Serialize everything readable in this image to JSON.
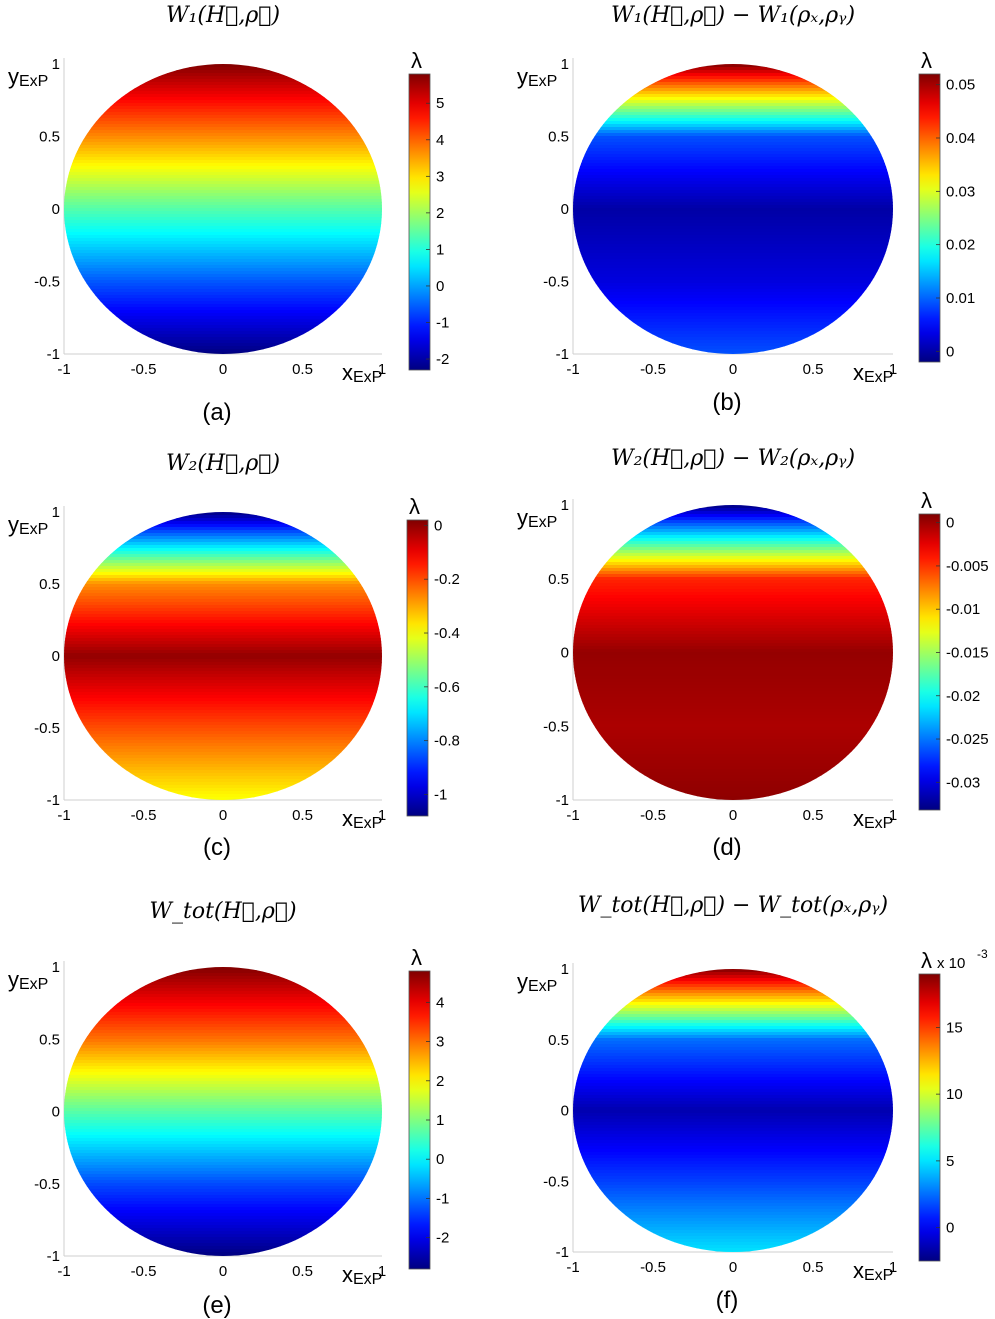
{
  "figure": {
    "x_axis_label": {
      "main": "x",
      "sub": "ExP"
    },
    "y_axis_label": {
      "main": "y",
      "sub": "ExP"
    },
    "x_ticks": [
      "-1",
      "-0.5",
      "0",
      "0.5",
      "1"
    ],
    "y_ticks": [
      "-1",
      "-0.5",
      "0",
      "0.5",
      "1"
    ]
  },
  "chart_data": [
    {
      "type": "heatmap",
      "title": "W₁(H⃗,ρ⃗)",
      "caption": "(a)",
      "xlabel": "xExP",
      "ylabel": "yExP",
      "xlim": [
        -1,
        1
      ],
      "ylim": [
        -1,
        1
      ],
      "colorbar": {
        "label": "λ",
        "exponent": "",
        "range": [
          -2.3,
          5.8
        ],
        "ticks": [
          "5",
          "4",
          "3",
          "2",
          "1",
          "0",
          "-1",
          "-2"
        ]
      },
      "field": {
        "top": 5.8,
        "y05": 3.7,
        "y0": 1.4,
        "ym05": -0.6,
        "bottom": -2.3,
        "shape": "tilt"
      },
      "colormap": "jet"
    },
    {
      "type": "heatmap",
      "title": "W₁(H⃗,ρ⃗) − W₁(ρₓ,ρᵧ)",
      "caption": "(b)",
      "xlabel": "xExP",
      "ylabel": "yExP",
      "xlim": [
        -1,
        1
      ],
      "ylim": [
        -1,
        1
      ],
      "colorbar": {
        "label": "λ",
        "exponent": "",
        "range": [
          -0.002,
          0.052
        ],
        "ticks": [
          "0.05",
          "0.04",
          "0.03",
          "0.02",
          "0.01",
          "0"
        ]
      },
      "field": {
        "top": 0.052,
        "y05": 0.009,
        "y0": 0.0,
        "ym05": 0.003,
        "bottom": 0.009,
        "shape": "cup"
      },
      "colormap": "jet"
    },
    {
      "type": "heatmap",
      "title": "W₂(H⃗,ρ⃗)",
      "caption": "(c)",
      "xlabel": "xExP",
      "ylabel": "yExP",
      "xlim": [
        -1,
        1
      ],
      "ylim": [
        -1,
        1
      ],
      "colorbar": {
        "label": "λ",
        "exponent": "",
        "range": [
          -1.08,
          0.02
        ],
        "ticks": [
          "0",
          "-0.2",
          "-0.4",
          "-0.6",
          "-0.8",
          "-1"
        ]
      },
      "field": {
        "top": -1.08,
        "y05": -0.27,
        "y0": 0.0,
        "ym05": -0.2,
        "bottom": -0.4,
        "shape": "cap"
      },
      "colormap": "jet"
    },
    {
      "type": "heatmap",
      "title": "W₂(H⃗,ρ⃗) − W₂(ρₓ,ρᵧ)",
      "caption": "(d)",
      "xlabel": "xExP",
      "ylabel": "yExP",
      "xlim": [
        -1,
        1
      ],
      "ylim": [
        -1,
        1
      ],
      "colorbar": {
        "label": "λ",
        "exponent": "",
        "range": [
          -0.0332,
          0.001
        ],
        "ticks": [
          "0",
          "-0.005",
          "-0.01",
          "-0.015",
          "-0.02",
          "-0.025",
          "-0.03"
        ]
      },
      "field": {
        "top": -0.0332,
        "y05": -0.0045,
        "y0": 0.0003,
        "ym05": -0.0005,
        "bottom": 0.0005,
        "shape": "cap"
      },
      "colormap": "jet"
    },
    {
      "type": "heatmap",
      "title": "W_tot(H⃗,ρ⃗)",
      "caption": "(e)",
      "xlabel": "xExP",
      "ylabel": "yExP",
      "xlim": [
        -1,
        1
      ],
      "ylim": [
        -1,
        1
      ],
      "colorbar": {
        "label": "λ",
        "exponent": "",
        "range": [
          -2.8,
          4.8
        ],
        "ticks": [
          "4",
          "3",
          "2",
          "1",
          "0",
          "-1",
          "-2"
        ]
      },
      "field": {
        "top": 4.8,
        "y05": 3.0,
        "y0": 0.7,
        "ym05": -1.3,
        "bottom": -2.8,
        "shape": "tilt"
      },
      "colormap": "jet"
    },
    {
      "type": "heatmap",
      "title": "W_tot(H⃗,ρ⃗) − W_tot(ρₓ,ρᵧ)",
      "caption": "(f)",
      "xlabel": "xExP",
      "ylabel": "yExP",
      "xlim": [
        -1,
        1
      ],
      "ylim": [
        -1,
        1
      ],
      "colorbar": {
        "label": "λ",
        "exponent": "x 10",
        "exponent_power": "-3",
        "range": [
          -2.5,
          19
        ],
        "ticks": [
          "15",
          "10",
          "5",
          "0"
        ]
      },
      "field": {
        "top": 19,
        "y05": 2.5,
        "y0": -1.5,
        "ym05": 1.5,
        "bottom": 5.0,
        "shape": "cup"
      },
      "colormap": "jet"
    }
  ]
}
